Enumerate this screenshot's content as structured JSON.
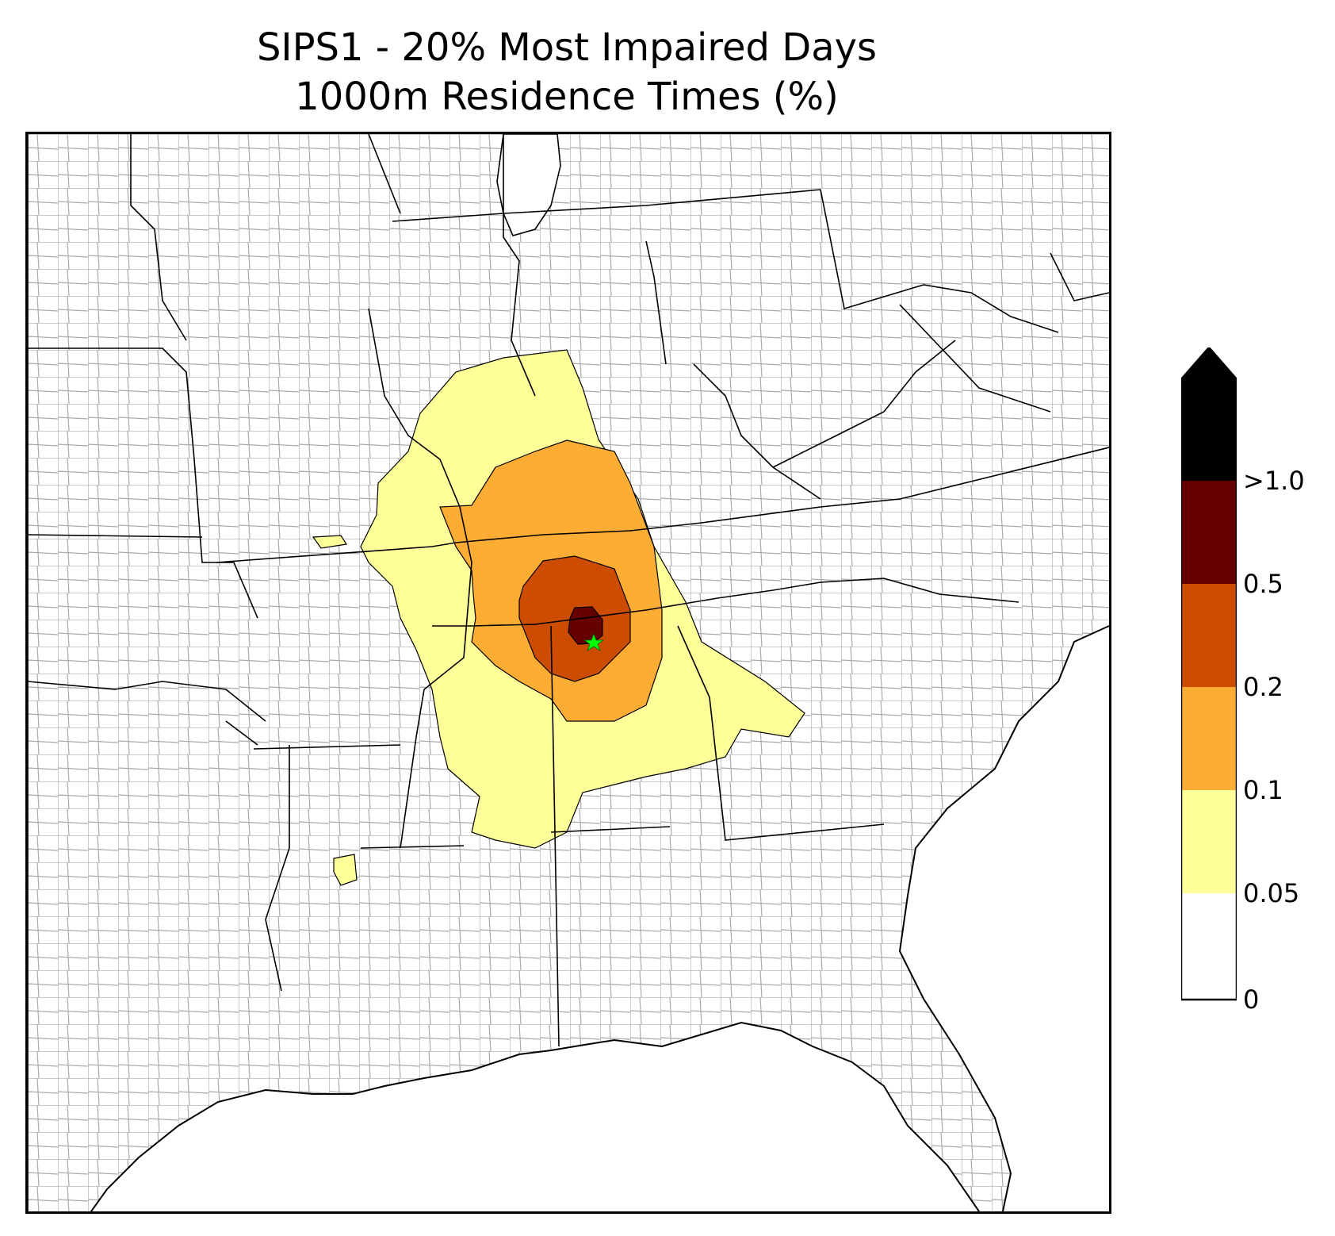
{
  "title": {
    "line1": "SIPS1 - 20% Most Impaired Days",
    "line2": "1000m Residence Times (%)"
  },
  "colorbar": {
    "ticks": [
      "0",
      "0.05",
      "0.1",
      "0.2",
      "0.5",
      ">1.0"
    ],
    "levels": [
      {
        "range": "0-0.05",
        "color": "#ffffff"
      },
      {
        "range": "0.05-0.1",
        "color": "#ffff99"
      },
      {
        "range": "0.1-0.2",
        "color": "#fdad33"
      },
      {
        "range": "0.2-0.5",
        "color": "#cc4c02"
      },
      {
        "range": "0.5-1.0",
        "color": "#660000"
      },
      {
        "range": ">1.0",
        "color": "#000000"
      }
    ],
    "extend": "max"
  },
  "map": {
    "region": "Southeastern United States",
    "boundaries": [
      "state",
      "county",
      "coastline"
    ],
    "source_marker": {
      "symbol": "star",
      "color": "#00ff00"
    }
  }
}
